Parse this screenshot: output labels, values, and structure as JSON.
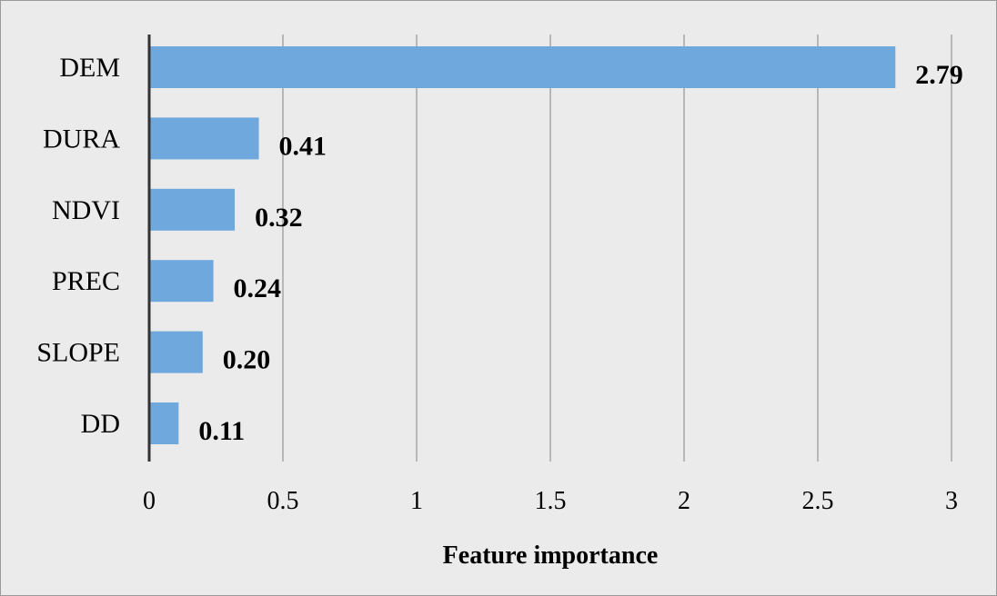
{
  "chart_data": {
    "type": "bar",
    "orientation": "horizontal",
    "categories": [
      "DEM",
      "DURA",
      "NDVI",
      "PREC",
      "SLOPE",
      "DD"
    ],
    "values": [
      2.79,
      0.41,
      0.32,
      0.24,
      0.2,
      0.11
    ],
    "data_labels": [
      "2.79",
      "0.41",
      "0.32",
      "0.24",
      "0.20",
      "0.11"
    ],
    "xlabel": "Feature importance",
    "ylabel": "",
    "title": "",
    "xlim": [
      0,
      3
    ],
    "xticks": [
      0,
      0.5,
      1,
      1.5,
      2,
      2.5,
      3
    ],
    "xtick_labels": [
      "0",
      "0.5",
      "1",
      "1.5",
      "2",
      "2.5",
      "3"
    ],
    "grid": "vertical",
    "legend": "none",
    "colors": {
      "bar": "#6fa8dc",
      "background": "#ebebeb",
      "grid": "#a6a6a6",
      "axis": "#333333"
    }
  }
}
